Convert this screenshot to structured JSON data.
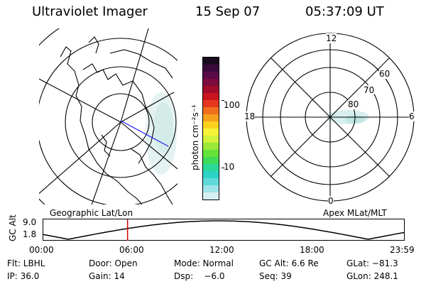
{
  "header": {
    "instrument": "Ultraviolet Imager",
    "date": "15 Sep 07",
    "time": "05:37:09 UT"
  },
  "colorbar": {
    "label": "photon cm⁻²s⁻¹",
    "ticks": [
      "100",
      "10"
    ],
    "colors": [
      "#1a0a1e",
      "#3b0a3c",
      "#5b0b48",
      "#7d0b3d",
      "#a00c2a",
      "#c9141d",
      "#e5361e",
      "#f06e1e",
      "#f6a01d",
      "#fbd11e",
      "#f6f33a",
      "#d2f23c",
      "#9be839",
      "#66e33a",
      "#3edc5a",
      "#2ad99a",
      "#2ad4c5",
      "#5fd9da",
      "#9fe4e8",
      "#d7eff0"
    ]
  },
  "left_map": {
    "caption": "Geographic Lat/Lon"
  },
  "right_map": {
    "caption": "Apex MLat/MLT",
    "mlt_labels": {
      "top": "12",
      "bottom": "0",
      "left": "18",
      "right": "6"
    },
    "lat_labels": [
      "60",
      "70",
      "80"
    ]
  },
  "timeline": {
    "ylabel": "GC Alt",
    "yticks": [
      "9.0",
      "1.8"
    ],
    "xticks": [
      "00:00",
      "06:00",
      "12:00",
      "18:00",
      "23:59"
    ],
    "current_time_fraction": 0.2341
  },
  "info": {
    "row1": [
      "Flt: LBHL",
      "Door: Open",
      "Mode: Normal",
      "GC Alt: 6.6 Re",
      "GLat: −81.3"
    ],
    "row2": [
      "IP: 36.0",
      "Gain: 14",
      "Dsp:    −6.0",
      "Seq: 39",
      "GLon: 248.1"
    ]
  }
}
